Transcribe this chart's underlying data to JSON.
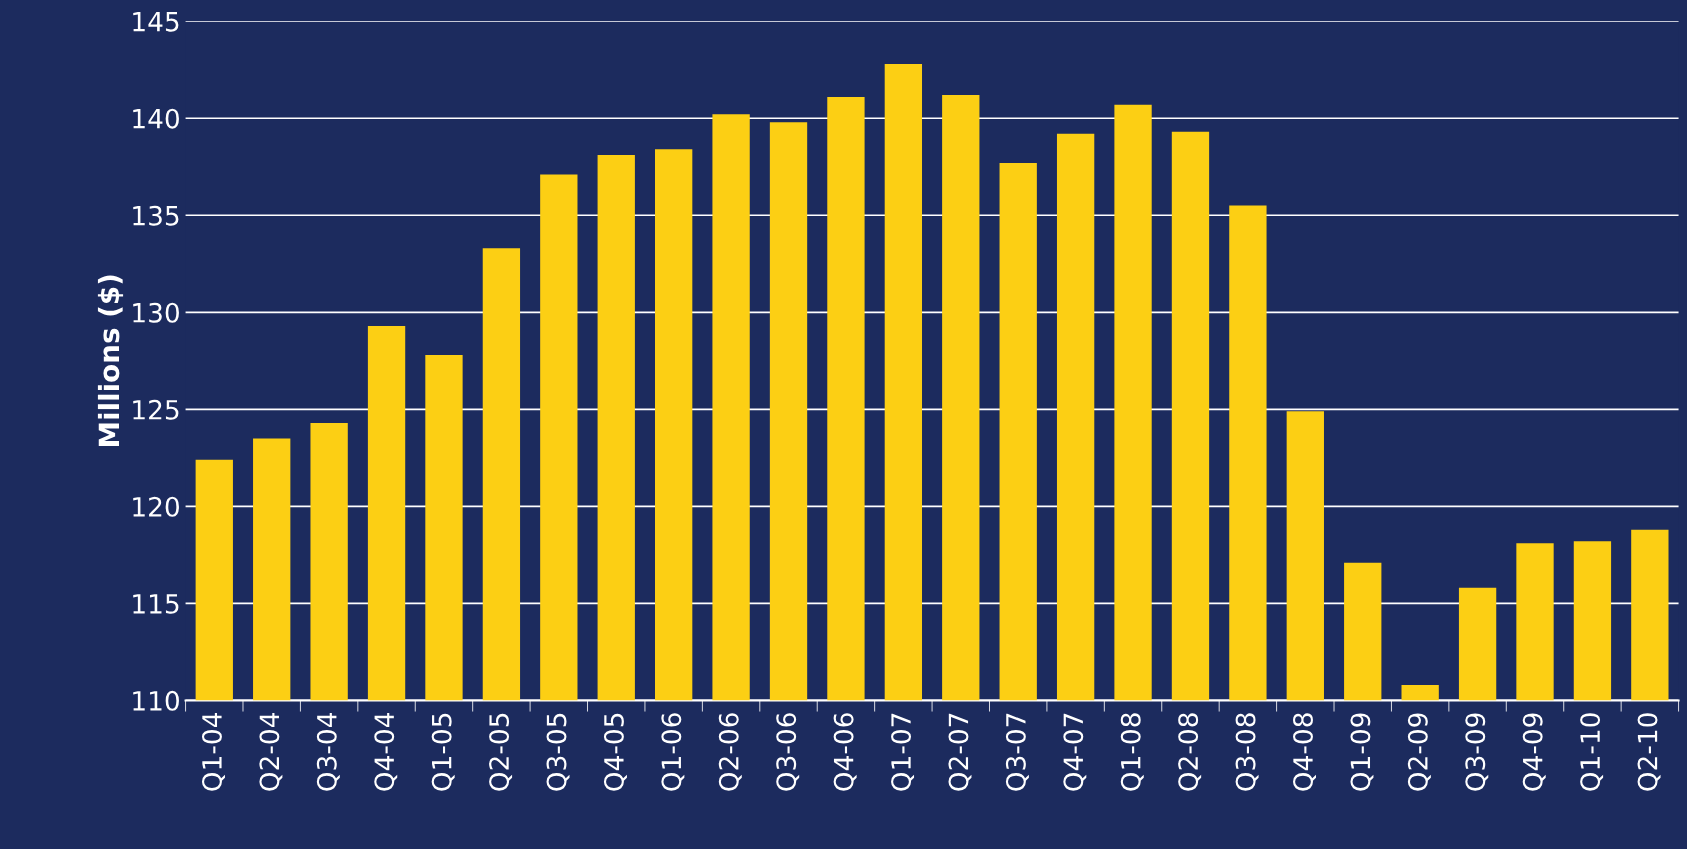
{
  "chart_data": {
    "type": "bar",
    "ylabel": "Millions ($)",
    "categories": [
      "Q1-04",
      "Q2-04",
      "Q3-04",
      "Q4-04",
      "Q1-05",
      "Q2-05",
      "Q3-05",
      "Q4-05",
      "Q1-06",
      "Q2-06",
      "Q3-06",
      "Q4-06",
      "Q1-07",
      "Q2-07",
      "Q3-07",
      "Q4-07",
      "Q1-08",
      "Q2-08",
      "Q3-08",
      "Q4-08",
      "Q1-09",
      "Q2-09",
      "Q3-09",
      "Q4-09",
      "Q1-10",
      "Q2-10"
    ],
    "values": [
      122.4,
      123.5,
      124.3,
      129.3,
      127.8,
      133.3,
      137.1,
      138.1,
      138.4,
      140.2,
      139.8,
      141.1,
      142.8,
      141.2,
      137.7,
      139.2,
      140.7,
      139.3,
      135.5,
      124.9,
      117.1,
      110.8,
      115.8,
      118.1,
      118.2,
      118.8
    ],
    "color": "#fccf14",
    "ylim": [
      110,
      145
    ],
    "yticks": [
      110,
      115,
      120,
      125,
      130,
      135,
      140,
      145
    ],
    "grid": "y"
  }
}
